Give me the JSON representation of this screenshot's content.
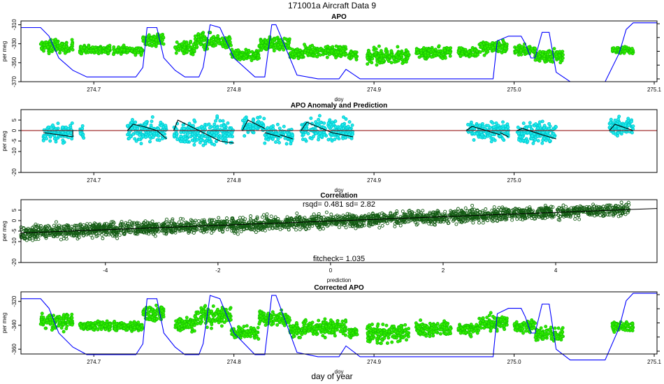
{
  "figure": {
    "title": "171001a   Aircraft Data 9",
    "xlabel_bottom": "day of year",
    "colors": {
      "observed": "#33ee00",
      "observed_edge": "#18c800",
      "model": "#0000ff",
      "anomaly": "#22eeee",
      "anomaly_edge": "#00c8d0",
      "prediction": "#000000",
      "zero_line": "#8b0000",
      "corr_points": "#145c14",
      "fit_line": "#000000"
    }
  },
  "chart_data": [
    {
      "type": "scatter",
      "id": "apo",
      "title": "APO",
      "xlabel": "doy",
      "ylabel": "per meg",
      "xlim": [
        274.648,
        275.102
      ],
      "ylim": [
        -370,
        -306
      ],
      "xticks": [
        274.7,
        274.8,
        274.9,
        275.0,
        275.1
      ],
      "xtick_labels": [
        "274.7",
        "274.8",
        "274.9",
        "275.0",
        "275.1"
      ],
      "yticks": [
        -310,
        -330,
        -350,
        -370
      ],
      "ytick_labels": [
        "-310",
        "-330",
        "-350",
        "-370"
      ],
      "series": [
        {
          "name": "observed APO",
          "style": "points",
          "segments": [
            {
              "x": [
                274.662,
                274.685
              ],
              "y_mean": -333,
              "spread": 8
            },
            {
              "x": [
                274.69,
                274.712
              ],
              "y_mean": -336,
              "spread": 5
            },
            {
              "x": [
                274.714,
                274.735
              ],
              "y_mean": -337,
              "spread": 5
            },
            {
              "x": [
                274.735,
                274.75
              ],
              "y_mean": -326,
              "spread": 8
            },
            {
              "x": [
                274.758,
                274.772
              ],
              "y_mean": -335,
              "spread": 8
            },
            {
              "x": [
                274.772,
                274.798
              ],
              "y_mean": -328,
              "spread": 10
            },
            {
              "x": [
                274.798,
                274.818
              ],
              "y_mean": -342,
              "spread": 6
            },
            {
              "x": [
                274.818,
                274.84
              ],
              "y_mean": -330,
              "spread": 8
            },
            {
              "x": [
                274.84,
                274.85
              ],
              "y_mean": -340,
              "spread": 7
            },
            {
              "x": [
                274.85,
                274.88
              ],
              "y_mean": -338,
              "spread": 8
            },
            {
              "x": [
                274.882,
                274.888
              ],
              "y_mean": -342,
              "spread": 6
            },
            {
              "x": [
                274.895,
                274.925
              ],
              "y_mean": -343,
              "spread": 9
            },
            {
              "x": [
                274.93,
                274.955
              ],
              "y_mean": -339,
              "spread": 7
            },
            {
              "x": [
                274.96,
                274.975
              ],
              "y_mean": -339,
              "spread": 6
            },
            {
              "x": [
                274.975,
                274.995
              ],
              "y_mean": -334,
              "spread": 8
            },
            {
              "x": [
                275.0,
                275.015
              ],
              "y_mean": -337,
              "spread": 6
            },
            {
              "x": [
                275.015,
                275.035
              ],
              "y_mean": -343,
              "spread": 7
            },
            {
              "x": [
                275.07,
                275.085
              ],
              "y_mean": -337,
              "spread": 5
            }
          ]
        },
        {
          "name": "model APO",
          "style": "line",
          "x": [
            274.648,
            274.662,
            274.668,
            274.675,
            274.685,
            274.695,
            274.73,
            274.735,
            274.738,
            274.745,
            274.75,
            274.758,
            274.765,
            274.775,
            274.778,
            274.783,
            274.79,
            274.8,
            274.815,
            274.822,
            274.827,
            274.83,
            274.845,
            274.86,
            274.875,
            274.88,
            274.89,
            274.93,
            274.985,
            274.988,
            274.996,
            275.005,
            275.008,
            275.012,
            275.015,
            275.02,
            275.025,
            275.03,
            275.04,
            275.065,
            275.075,
            275.08,
            275.085,
            275.102
          ],
          "y": [
            -313,
            -313,
            -322,
            -345,
            -358,
            -365,
            -365,
            -355,
            -313,
            -313,
            -345,
            -358,
            -365,
            -365,
            -355,
            -310,
            -313,
            -345,
            -365,
            -365,
            -310,
            -310,
            -363,
            -367,
            -367,
            -357,
            -367,
            -367,
            -367,
            -327,
            -322,
            -322,
            -330,
            -345,
            -345,
            -318,
            -318,
            -360,
            -370,
            -370,
            -340,
            -315,
            -308,
            -308
          ]
        }
      ]
    },
    {
      "type": "scatter",
      "id": "anomaly",
      "title": "APO Anomaly and Prediction",
      "xlabel": "doy",
      "ylabel": "per meg",
      "xlim": [
        274.648,
        275.102
      ],
      "ylim": [
        -20,
        10
      ],
      "xticks": [
        274.7,
        274.8,
        274.9,
        275.0
      ],
      "xtick_labels": [
        "274.7",
        "274.8",
        "274.9",
        "275.0"
      ],
      "yticks": [
        5,
        0,
        -5,
        -10,
        -20
      ],
      "ytick_labels": [
        "5",
        "0",
        "-5",
        "-10",
        "-20"
      ],
      "series": [
        {
          "name": "APO anomaly",
          "style": "points"
        },
        {
          "name": "prediction",
          "style": "line",
          "segments": [
            {
              "x": [
                274.664,
                274.675,
                274.685
              ],
              "y": [
                -1,
                -2,
                -3
              ]
            },
            {
              "x": [
                274.685,
                274.685,
                274.688
              ],
              "y": [
                -3,
                0,
                0
              ]
            },
            {
              "x": [
                274.724,
                274.728,
                274.735,
                274.745,
                274.752
              ],
              "y": [
                0,
                3,
                2,
                0,
                -4
              ]
            },
            {
              "x": [
                274.757,
                274.76,
                274.775,
                274.79,
                274.8
              ],
              "y": [
                0,
                5,
                0,
                -5,
                -6
              ]
            },
            {
              "x": [
                274.806,
                274.81,
                274.822
              ],
              "y": [
                0,
                5,
                1
              ]
            },
            {
              "x": [
                274.822,
                274.833
              ],
              "y": [
                -1,
                -3
              ]
            },
            {
              "x": [
                274.833,
                274.842
              ],
              "y": [
                -2,
                -4
              ]
            },
            {
              "x": [
                274.848,
                274.852,
                274.87,
                274.885
              ],
              "y": [
                0,
                4,
                -1,
                -3
              ]
            },
            {
              "x": [
                274.966,
                274.97,
                274.99
              ],
              "y": [
                0,
                2,
                -2
              ]
            },
            {
              "x": [
                274.99,
                274.996
              ],
              "y": [
                -1,
                -3
              ]
            },
            {
              "x": [
                275.002,
                275.006,
                275.02,
                275.03
              ],
              "y": [
                0,
                1,
                -2,
                -4
              ]
            },
            {
              "x": [
                275.068,
                275.072,
                275.085
              ],
              "y": [
                0,
                3,
                0
              ]
            }
          ]
        },
        {
          "name": "zero",
          "style": "hline",
          "y": 0
        }
      ],
      "point_segments": [
        {
          "x": [
            274.664,
            274.685
          ],
          "y_mean": -1,
          "spread": 5
        },
        {
          "x": [
            274.69,
            274.693
          ],
          "y_mean": -1,
          "spread": 4
        },
        {
          "x": [
            274.724,
            274.752
          ],
          "y_mean": 0,
          "spread": 6
        },
        {
          "x": [
            274.757,
            274.8
          ],
          "y_mean": -1,
          "spread": 7
        },
        {
          "x": [
            274.806,
            274.822
          ],
          "y_mean": 2,
          "spread": 5
        },
        {
          "x": [
            274.822,
            274.842
          ],
          "y_mean": -2,
          "spread": 5
        },
        {
          "x": [
            274.848,
            274.885
          ],
          "y_mean": 0,
          "spread": 6
        },
        {
          "x": [
            274.966,
            274.996
          ],
          "y_mean": 0,
          "spread": 5
        },
        {
          "x": [
            275.002,
            275.03
          ],
          "y_mean": -1,
          "spread": 6
        },
        {
          "x": [
            275.068,
            275.085
          ],
          "y_mean": 2,
          "spread": 5
        }
      ]
    },
    {
      "type": "scatter",
      "id": "correlation",
      "title": "Correlation",
      "annotations": [
        "rsqd= 0.481 sd= 2.82",
        "fitcheck= 1.035"
      ],
      "xlabel": "prediction",
      "ylabel": "per meg",
      "xlim": [
        -5.5,
        5.8
      ],
      "ylim": [
        -20,
        10
      ],
      "xticks": [
        -4,
        -2,
        0,
        2,
        4
      ],
      "xtick_labels": [
        "-4",
        "-2",
        "0",
        "2",
        "4"
      ],
      "yticks": [
        5,
        0,
        -5,
        -10,
        -20
      ],
      "ytick_labels": [
        "5",
        "0",
        "-5",
        "-10",
        "-20"
      ],
      "fit": {
        "slope": 1.035,
        "intercept": -0.2
      },
      "points_range_x": [
        -5.5,
        5.3
      ]
    },
    {
      "type": "scatter",
      "id": "corrected",
      "title": "Corrected APO",
      "xlabel": "doy",
      "ylabel": "per meg",
      "xlim": [
        274.648,
        275.102
      ],
      "ylim": [
        -364,
        -312
      ],
      "xticks": [
        274.7,
        274.8,
        274.9,
        275.0,
        275.1
      ],
      "xtick_labels": [
        "274.7",
        "274.8",
        "274.9",
        "275.0",
        "275.1"
      ],
      "yticks": [
        -320,
        -340,
        -360
      ],
      "ytick_labels": [
        "-320",
        "-340",
        "-360"
      ],
      "note": "observed points corrected by subtracting prediction; model line identical in shape to APO panel"
    }
  ]
}
